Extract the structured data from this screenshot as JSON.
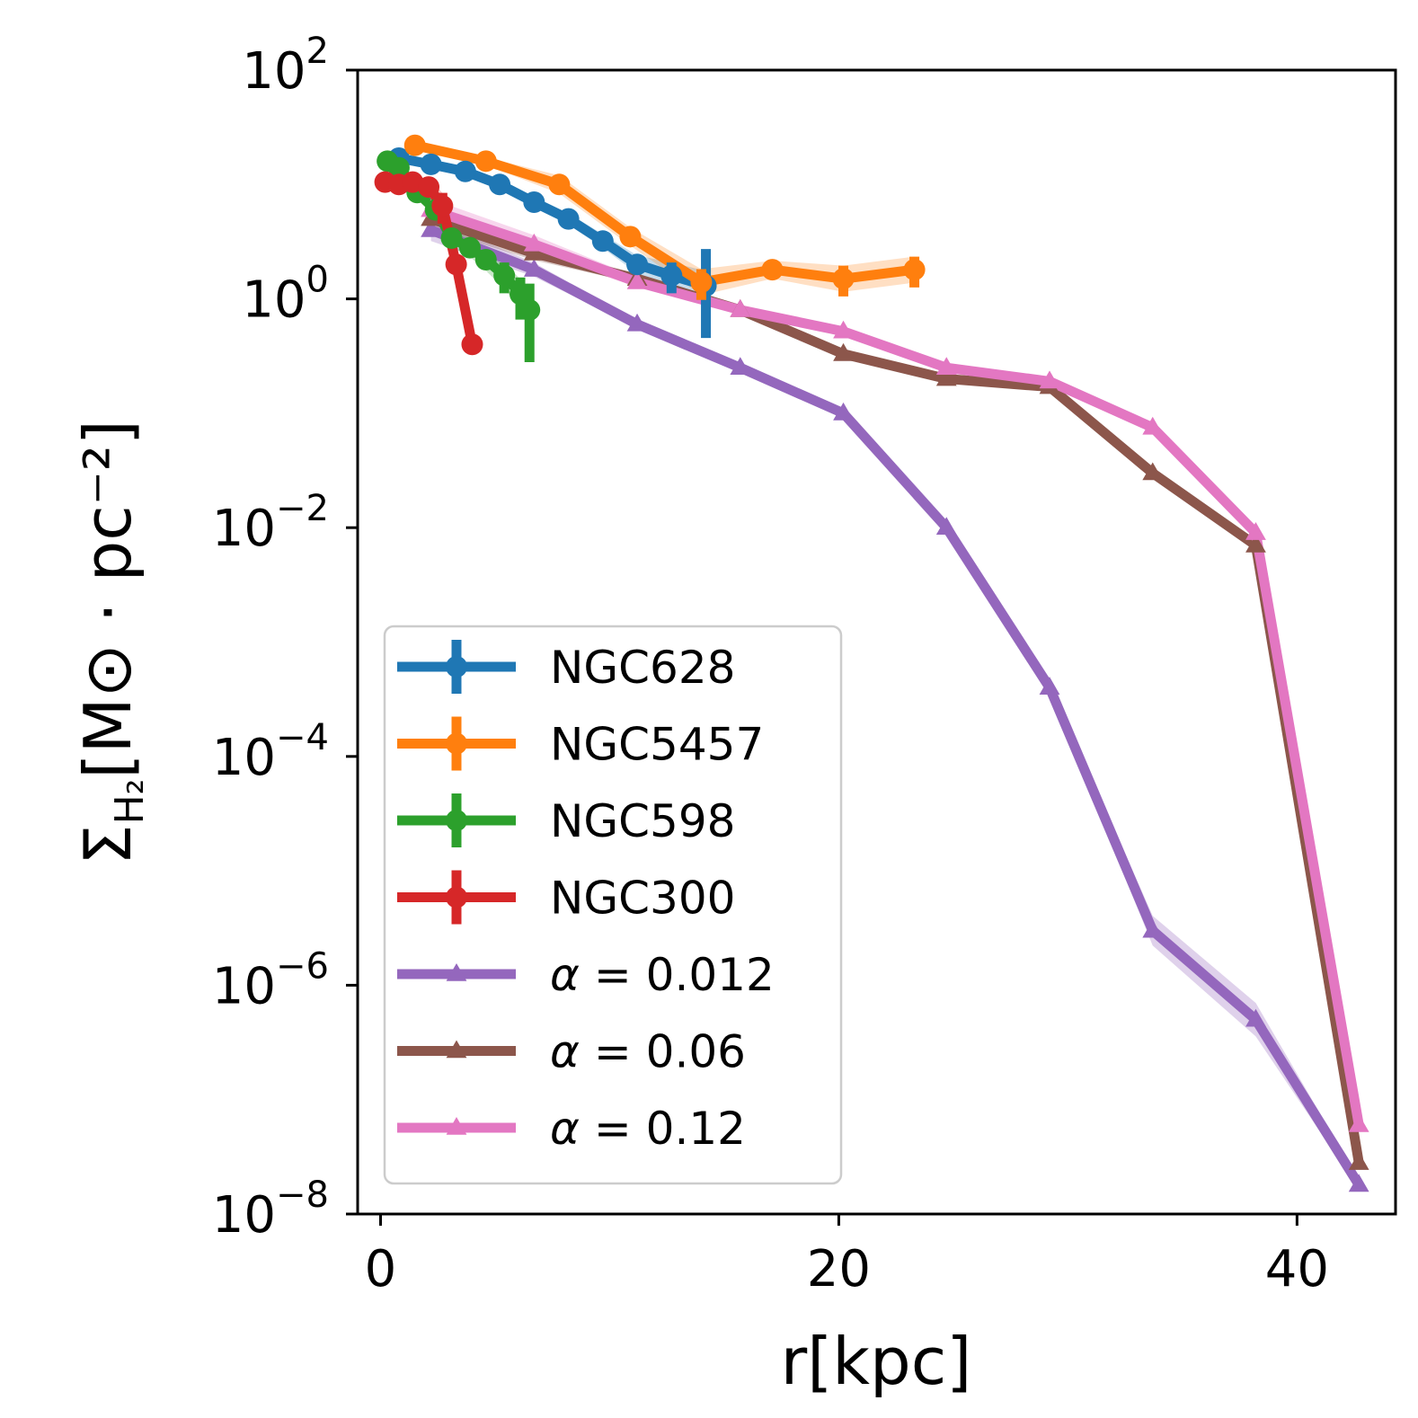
{
  "chart_data": {
    "type": "line",
    "xlabel": "r[kpc]",
    "ylabel": {
      "symbol": "Σ",
      "subscript": "H₂",
      "units": "[M⊙ · pc⁻²]"
    },
    "xlim": [
      -1,
      44.3
    ],
    "ylim_log10": [
      -8,
      2
    ],
    "yscale": "log",
    "xticks": [
      {
        "value": 0,
        "label": "0"
      },
      {
        "value": 20,
        "label": "20"
      },
      {
        "value": 40,
        "label": "40"
      }
    ],
    "yticks": [
      {
        "exp": 2,
        "base": "10",
        "sup": "2"
      },
      {
        "exp": 0,
        "base": "10",
        "sup": "0"
      },
      {
        "exp": -2,
        "base": "10",
        "sup": "−2"
      },
      {
        "exp": -4,
        "base": "10",
        "sup": "−4"
      },
      {
        "exp": -6,
        "base": "10",
        "sup": "−6"
      },
      {
        "exp": -8,
        "base": "10",
        "sup": "−8"
      }
    ],
    "legend_position": "lower-left",
    "series": [
      {
        "name": "NGC628",
        "label": "NGC628",
        "color": "#1f77b4",
        "marker": "circle",
        "kind": "observed",
        "x": [
          0.8,
          2.2,
          3.7,
          5.2,
          6.7,
          8.2,
          9.7,
          11.2,
          12.7,
          14.2
        ],
        "y": [
          17.0,
          15.0,
          13.0,
          10.0,
          7.0,
          5.0,
          3.2,
          2.0,
          1.6,
          1.3
        ],
        "err_frac": [
          0.1,
          0.1,
          0.1,
          0.1,
          0.1,
          0.12,
          0.15,
          0.2,
          0.3,
          1.1
        ]
      },
      {
        "name": "NGC5457",
        "label": "NGC5457",
        "color": "#ff7f0e",
        "marker": "circle",
        "kind": "observed",
        "x": [
          1.5,
          4.6,
          7.8,
          10.9,
          14.0,
          17.1,
          20.2,
          23.3
        ],
        "y": [
          22.0,
          16.0,
          10.0,
          3.5,
          1.4,
          1.8,
          1.5,
          1.8
        ],
        "err_frac": [
          0.08,
          0.08,
          0.2,
          0.2,
          0.3,
          0.2,
          0.3,
          0.3
        ]
      },
      {
        "name": "NGC598",
        "label": "NGC598",
        "color": "#2ca02c",
        "marker": "circle",
        "kind": "observed",
        "x": [
          0.3,
          0.8,
          1.6,
          2.4,
          3.1,
          3.9,
          4.6,
          5.4,
          6.1,
          6.5
        ],
        "y": [
          16.0,
          14.0,
          8.5,
          6.0,
          3.4,
          2.8,
          2.2,
          1.6,
          1.1,
          0.8
        ],
        "err_frac": [
          0.1,
          0.1,
          0.15,
          0.15,
          0.2,
          0.2,
          0.25,
          0.3,
          0.4,
          0.7
        ]
      },
      {
        "name": "NGC300",
        "label": "NGC300",
        "color": "#d62728",
        "marker": "circle",
        "kind": "observed",
        "x": [
          0.2,
          0.8,
          1.4,
          2.1,
          2.7,
          3.3,
          4.0
        ],
        "y": [
          10.5,
          10.0,
          10.5,
          9.5,
          6.5,
          2.0,
          0.4
        ],
        "err_frac": [
          0.1,
          0.1,
          0.1,
          0.2,
          0.3,
          0.2,
          0.1
        ]
      },
      {
        "name": "alpha_0.012",
        "label": "α = 0.012",
        "color": "#9467bd",
        "marker": "triangle",
        "kind": "model",
        "x": [
          2.2,
          6.7,
          11.2,
          15.7,
          20.2,
          24.7,
          29.2,
          33.7,
          38.2,
          42.7
        ],
        "y": [
          4.0,
          1.8,
          0.6,
          0.25,
          0.1,
          0.01,
          0.0004,
          3e-06,
          5e-07,
          1.8e-08
        ],
        "band_frac": [
          0.25,
          0.15,
          0.08,
          0.05,
          0.05,
          0.05,
          0.1,
          0.35,
          0.4,
          0.1
        ]
      },
      {
        "name": "alpha_0.06",
        "label": "α = 0.06",
        "color": "#8c564b",
        "marker": "triangle",
        "kind": "model",
        "x": [
          2.2,
          6.7,
          11.2,
          15.7,
          20.2,
          24.7,
          29.2,
          33.7,
          38.2,
          42.7
        ],
        "y": [
          5.0,
          2.5,
          1.5,
          0.8,
          0.33,
          0.2,
          0.17,
          0.03,
          0.007,
          2.8e-08
        ],
        "band_frac": [
          0.2,
          0.15,
          0.1,
          0.1,
          0.08,
          0.05,
          0.05,
          0.05,
          0.05,
          0.05
        ]
      },
      {
        "name": "alpha_0.12",
        "label": "α = 0.12",
        "color": "#e377c2",
        "marker": "triangle",
        "kind": "model",
        "x": [
          2.2,
          6.7,
          11.2,
          15.7,
          20.2,
          24.7,
          29.2,
          33.7,
          38.2,
          42.7
        ],
        "y": [
          6.0,
          3.0,
          1.4,
          0.8,
          0.52,
          0.25,
          0.19,
          0.075,
          0.009,
          6e-08
        ],
        "band_frac": [
          0.25,
          0.2,
          0.1,
          0.1,
          0.1,
          0.08,
          0.05,
          0.05,
          0.05,
          0.05
        ]
      }
    ]
  }
}
